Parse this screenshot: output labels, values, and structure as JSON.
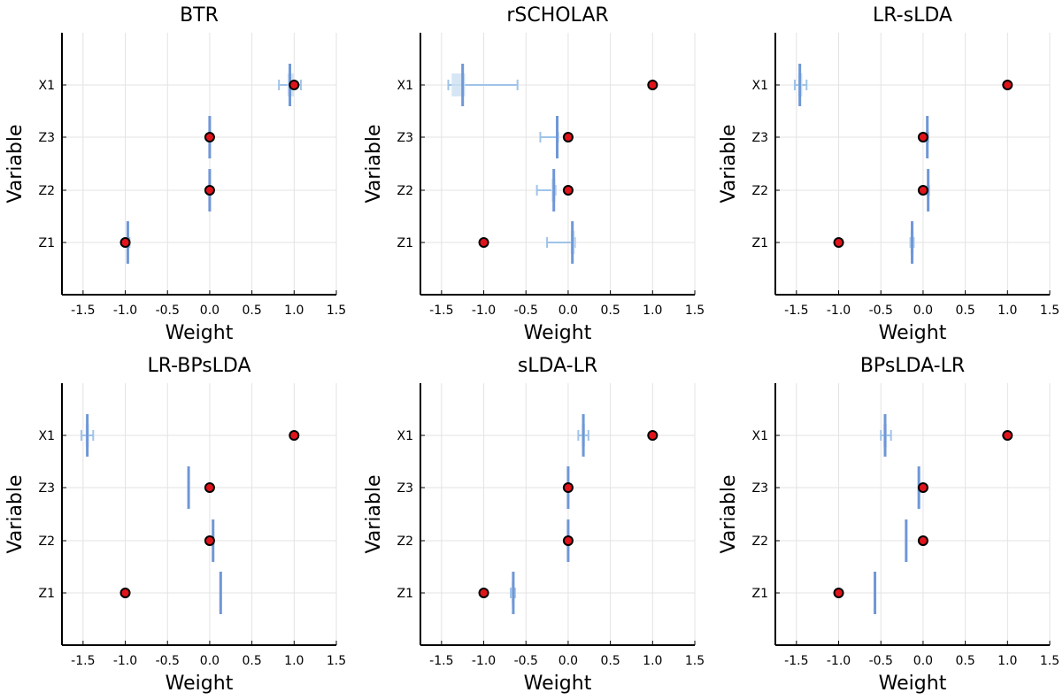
{
  "figure": {
    "colors": {
      "estimate_line": "#6f97d6",
      "interval": "#9fc3e8",
      "interval_box": "#cfe2f3",
      "truth_fill": "#e0141b",
      "truth_edge": "#000000"
    }
  },
  "chart_data": [
    {
      "type": "scatter",
      "title": "BTR",
      "xlabel": "Weight",
      "ylabel": "Variable",
      "xlim": [
        -1.75,
        1.5
      ],
      "xticks": [
        "-1.5",
        "-1.0",
        "-0.5",
        "0.0",
        "0.5",
        "1.0",
        "1.5"
      ],
      "xtick_values": [
        -1.5,
        -1.0,
        -0.5,
        0.0,
        0.5,
        1.0,
        1.5
      ],
      "categories": [
        "Z1",
        "Z2",
        "Z3",
        "X1"
      ],
      "series": [
        {
          "name": "true",
          "values": [
            -1.0,
            0.0,
            0.0,
            1.0
          ]
        },
        {
          "name": "estimate",
          "values": [
            -0.97,
            0.0,
            0.0,
            0.95
          ]
        },
        {
          "name": "interval_low",
          "values": [
            -0.99,
            0.0,
            0.0,
            0.82
          ]
        },
        {
          "name": "interval_high",
          "values": [
            -0.95,
            0.0,
            0.0,
            1.08
          ]
        },
        {
          "name": "box_low",
          "values": [
            -0.98,
            0.0,
            0.0,
            0.92
          ]
        },
        {
          "name": "box_high",
          "values": [
            -0.96,
            0.0,
            0.0,
            1.0
          ]
        }
      ]
    },
    {
      "type": "scatter",
      "title": "rSCHOLAR",
      "xlabel": "Weight",
      "ylabel": "Variable",
      "xlim": [
        -1.75,
        1.5
      ],
      "xticks": [
        "-1.5",
        "-1.0",
        "-0.5",
        "0.0",
        "0.5",
        "1.0",
        "1.5"
      ],
      "xtick_values": [
        -1.5,
        -1.0,
        -0.5,
        0.0,
        0.5,
        1.0,
        1.5
      ],
      "categories": [
        "Z1",
        "Z2",
        "Z3",
        "X1"
      ],
      "series": [
        {
          "name": "true",
          "values": [
            -1.0,
            0.0,
            0.0,
            1.0
          ]
        },
        {
          "name": "estimate",
          "values": [
            0.05,
            -0.17,
            -0.13,
            -1.25
          ]
        },
        {
          "name": "interval_low",
          "values": [
            -0.25,
            -0.37,
            -0.33,
            -1.42
          ]
        },
        {
          "name": "interval_high",
          "values": [
            0.08,
            -0.15,
            -0.12,
            -0.6
          ]
        },
        {
          "name": "box_low",
          "values": [
            0.03,
            -0.2,
            -0.14,
            -1.38
          ]
        },
        {
          "name": "box_high",
          "values": [
            0.08,
            -0.15,
            -0.12,
            -1.22
          ]
        }
      ]
    },
    {
      "type": "scatter",
      "title": "LR-sLDA",
      "xlabel": "Weight",
      "ylabel": "Variable",
      "xlim": [
        -1.75,
        1.5
      ],
      "xticks": [
        "-1.5",
        "-1.0",
        "-0.5",
        "0.0",
        "0.5",
        "1.0",
        "1.5"
      ],
      "xtick_values": [
        -1.5,
        -1.0,
        -0.5,
        0.0,
        0.5,
        1.0,
        1.5
      ],
      "categories": [
        "Z1",
        "Z2",
        "Z3",
        "X1"
      ],
      "series": [
        {
          "name": "true",
          "values": [
            -1.0,
            0.0,
            0.0,
            1.0
          ]
        },
        {
          "name": "estimate",
          "values": [
            -0.13,
            0.06,
            0.05,
            -1.46
          ]
        },
        {
          "name": "interval_low",
          "values": [
            -0.15,
            0.05,
            0.04,
            -1.52
          ]
        },
        {
          "name": "interval_high",
          "values": [
            -0.11,
            0.07,
            0.06,
            -1.38
          ]
        },
        {
          "name": "box_low",
          "values": [
            -0.15,
            0.05,
            0.04,
            -1.48
          ]
        },
        {
          "name": "box_high",
          "values": [
            -0.11,
            0.07,
            0.06,
            -1.43
          ]
        }
      ]
    },
    {
      "type": "scatter",
      "title": "LR-BPsLDA",
      "xlabel": "Weight",
      "ylabel": "Variable",
      "xlim": [
        -1.75,
        1.5
      ],
      "xticks": [
        "-1.5",
        "-1.0",
        "-0.5",
        "0.0",
        "0.5",
        "1.0",
        "1.5"
      ],
      "xtick_values": [
        -1.5,
        -1.0,
        -0.5,
        0.0,
        0.5,
        1.0,
        1.5
      ],
      "categories": [
        "Z1",
        "Z2",
        "Z3",
        "X1"
      ],
      "series": [
        {
          "name": "true",
          "values": [
            -1.0,
            0.0,
            0.0,
            1.0
          ]
        },
        {
          "name": "estimate",
          "values": [
            0.13,
            0.04,
            -0.25,
            -1.45
          ]
        },
        {
          "name": "interval_low",
          "values": [
            0.13,
            0.04,
            -0.25,
            -1.52
          ]
        },
        {
          "name": "interval_high",
          "values": [
            0.13,
            0.04,
            -0.25,
            -1.38
          ]
        },
        {
          "name": "box_low",
          "values": [
            0.13,
            0.04,
            -0.25,
            -1.47
          ]
        },
        {
          "name": "box_high",
          "values": [
            0.13,
            0.04,
            -0.25,
            -1.43
          ]
        }
      ]
    },
    {
      "type": "scatter",
      "title": "sLDA-LR",
      "xlabel": "Weight",
      "ylabel": "Variable",
      "xlim": [
        -1.75,
        1.5
      ],
      "xticks": [
        "-1.5",
        "-1.0",
        "-0.5",
        "0.0",
        "0.5",
        "1.0",
        "1.5"
      ],
      "xtick_values": [
        -1.5,
        -1.0,
        -0.5,
        0.0,
        0.5,
        1.0,
        1.5
      ],
      "categories": [
        "Z1",
        "Z2",
        "Z3",
        "X1"
      ],
      "series": [
        {
          "name": "true",
          "values": [
            -1.0,
            0.0,
            0.0,
            1.0
          ]
        },
        {
          "name": "estimate",
          "values": [
            -0.65,
            0.0,
            0.0,
            0.18
          ]
        },
        {
          "name": "interval_low",
          "values": [
            -0.68,
            0.0,
            0.0,
            0.12
          ]
        },
        {
          "name": "interval_high",
          "values": [
            -0.63,
            0.0,
            0.0,
            0.24
          ]
        },
        {
          "name": "box_low",
          "values": [
            -0.67,
            0.0,
            0.0,
            0.16
          ]
        },
        {
          "name": "box_high",
          "values": [
            -0.64,
            0.0,
            0.0,
            0.2
          ]
        }
      ]
    },
    {
      "type": "scatter",
      "title": "BPsLDA-LR",
      "xlabel": "Weight",
      "ylabel": "Variable",
      "xlim": [
        -1.75,
        1.5
      ],
      "xticks": [
        "-1.5",
        "-1.0",
        "-0.5",
        "0.0",
        "0.5",
        "1.0",
        "1.5"
      ],
      "xtick_values": [
        -1.5,
        -1.0,
        -0.5,
        0.0,
        0.5,
        1.0,
        1.5
      ],
      "categories": [
        "Z1",
        "Z2",
        "Z3",
        "X1"
      ],
      "series": [
        {
          "name": "true",
          "values": [
            -1.0,
            0.0,
            0.0,
            1.0
          ]
        },
        {
          "name": "estimate",
          "values": [
            -0.57,
            -0.2,
            -0.05,
            -0.45
          ]
        },
        {
          "name": "interval_low",
          "values": [
            -0.57,
            -0.2,
            -0.05,
            -0.5
          ]
        },
        {
          "name": "interval_high",
          "values": [
            -0.57,
            -0.2,
            -0.05,
            -0.38
          ]
        },
        {
          "name": "box_low",
          "values": [
            -0.57,
            -0.2,
            -0.05,
            -0.47
          ]
        },
        {
          "name": "box_high",
          "values": [
            -0.57,
            -0.2,
            -0.05,
            -0.43
          ]
        }
      ]
    }
  ]
}
